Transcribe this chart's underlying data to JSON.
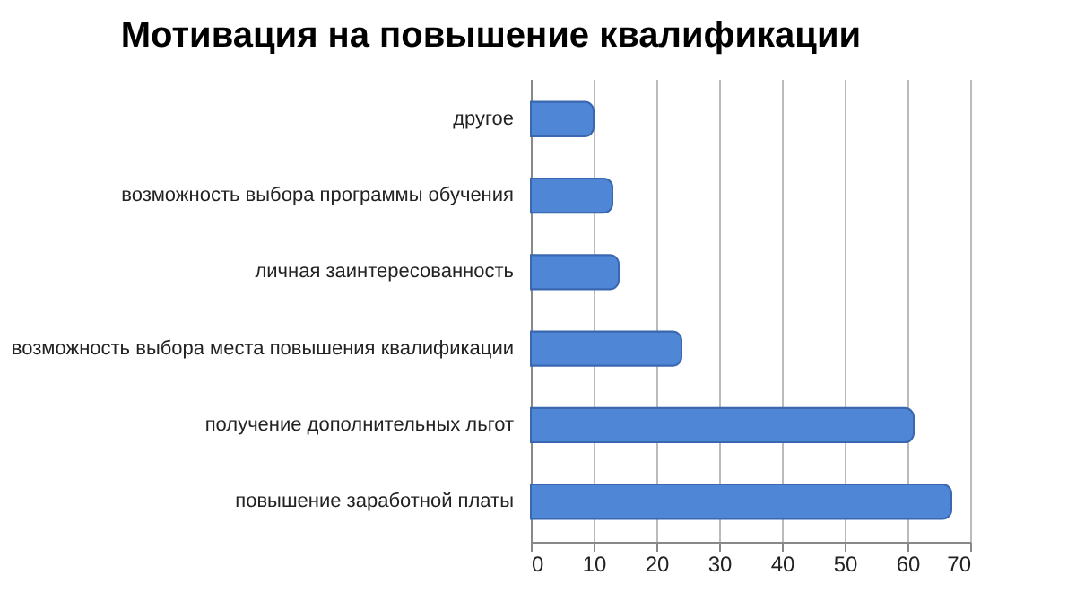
{
  "chart_data": {
    "type": "bar",
    "orientation": "horizontal",
    "title": "Мотивация на повышение квалификации",
    "categories": [
      "другое",
      "возможность выбора программы обучения",
      "личная заинтересованность",
      "возможность выбора места повышения квалификации",
      "получение дополнительных льгот",
      "повышение заработной платы"
    ],
    "values": [
      10,
      13,
      14,
      24,
      61,
      67
    ],
    "color": "#4f86d6",
    "xlim": [
      0,
      70
    ],
    "xticks": [
      0,
      10,
      20,
      30,
      40,
      50,
      60,
      70
    ],
    "grid": "x"
  }
}
